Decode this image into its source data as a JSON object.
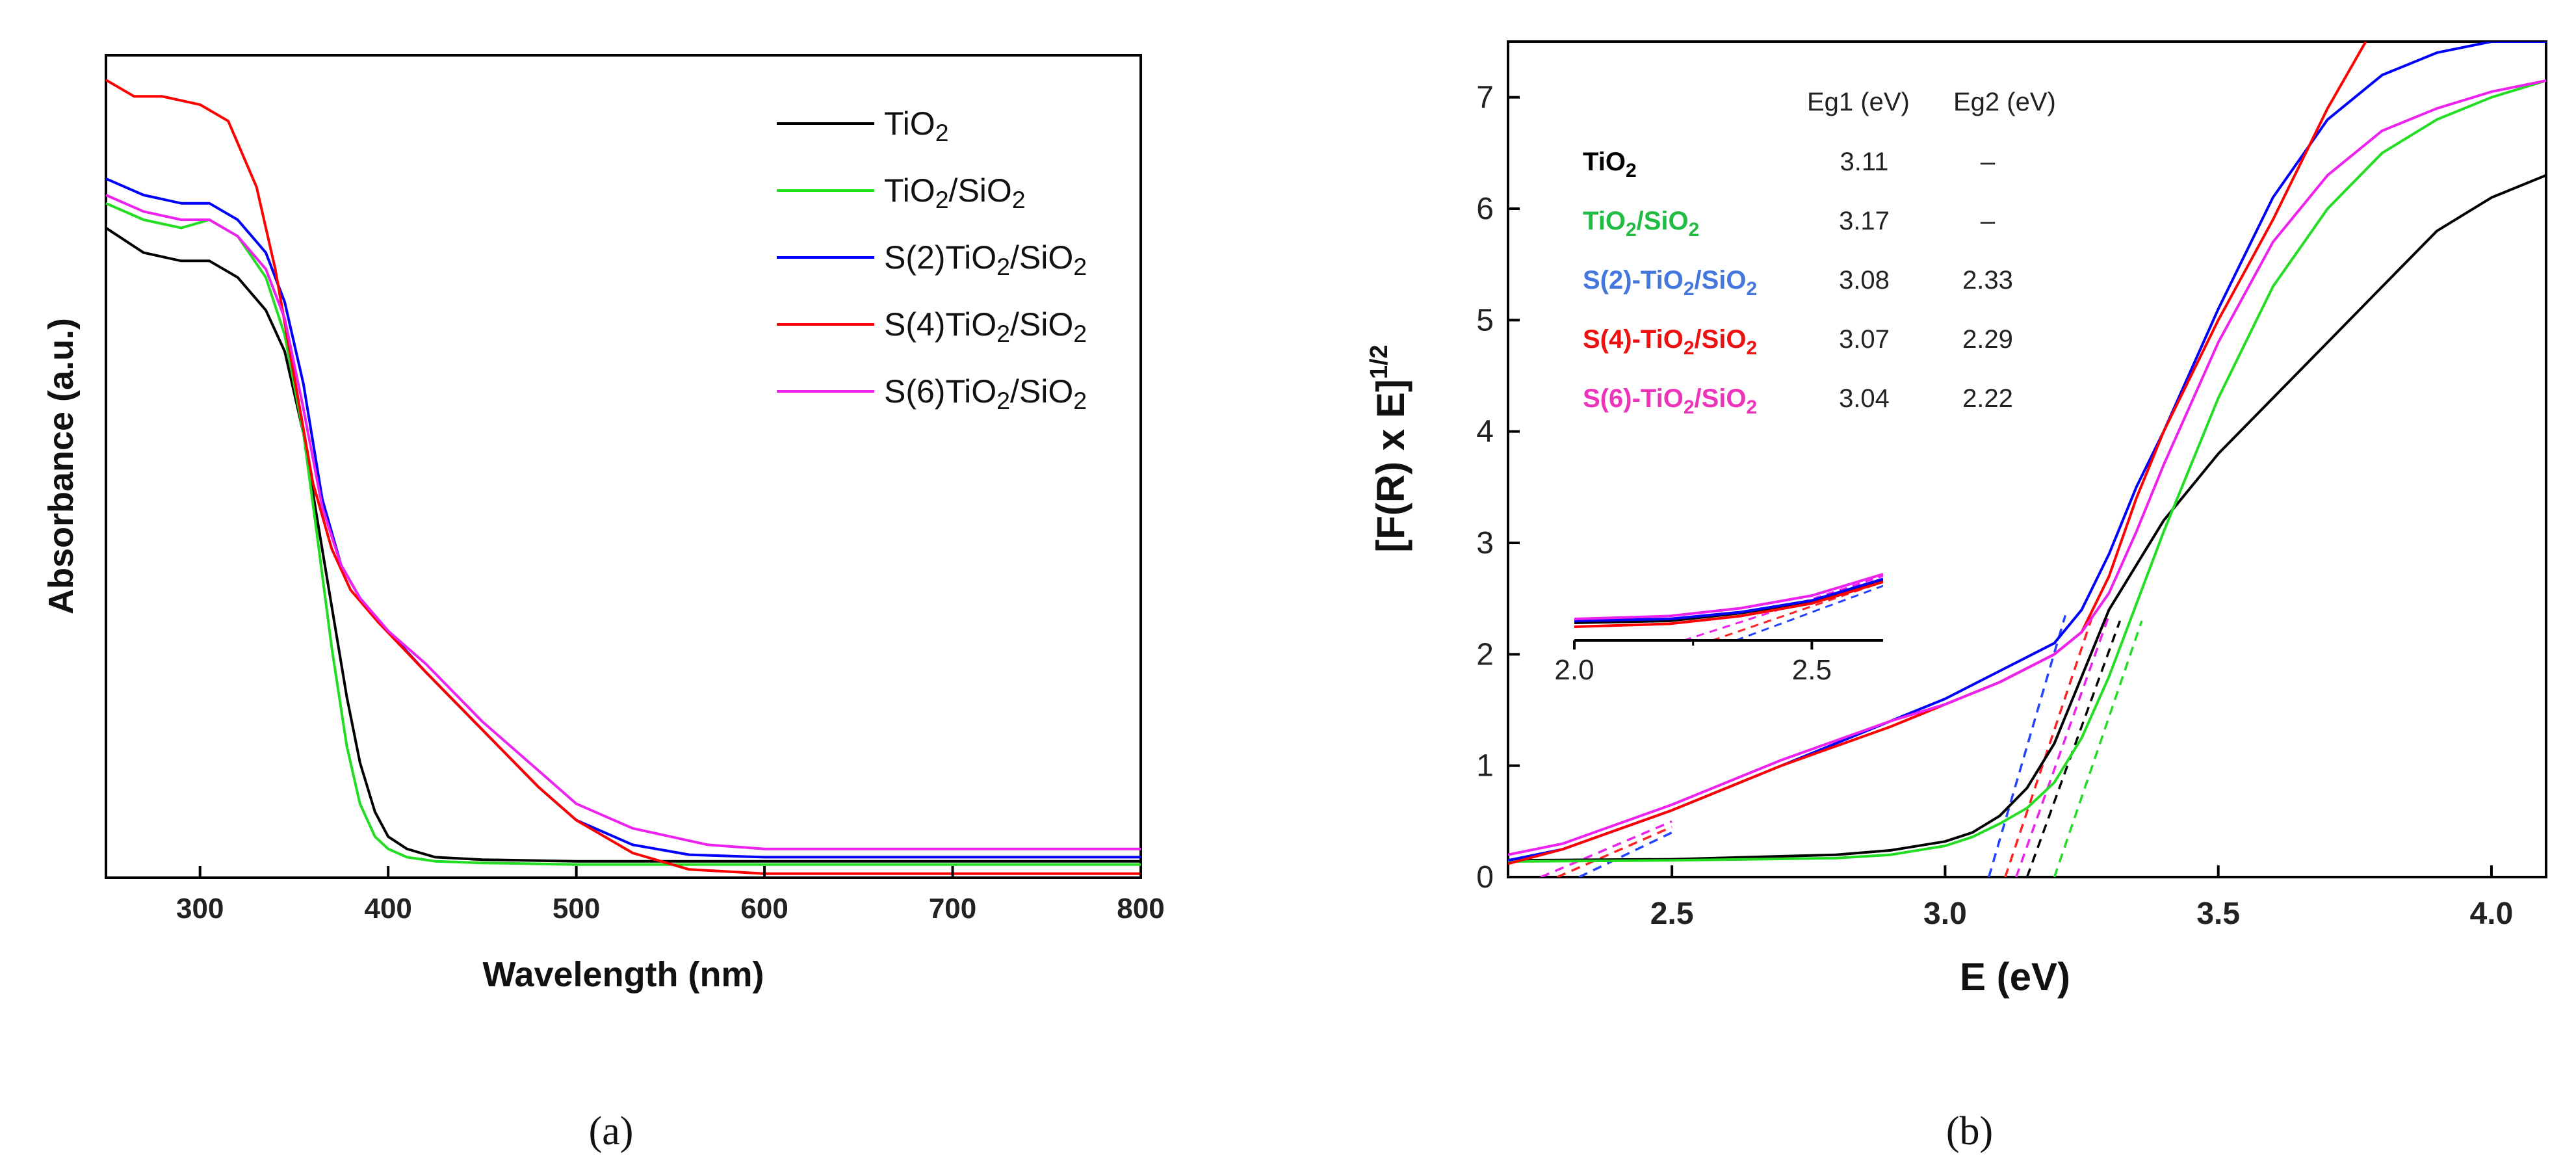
{
  "chart_data": [
    {
      "id": "a",
      "type": "line",
      "caption": "(a)",
      "xlabel": "Wavelength (nm)",
      "ylabel": "Absorbance (a.u.)",
      "xlim": [
        250,
        800
      ],
      "ylim": [
        0,
        1
      ],
      "xticks": [
        300,
        400,
        500,
        600,
        700,
        800
      ],
      "legend_position": "top-right",
      "series": [
        {
          "name": "TiO2",
          "label": {
            "pre": "TiO",
            "sub": "2",
            "mid": "",
            "sub2": ""
          },
          "color": "#000000",
          "x": [
            250,
            270,
            290,
            305,
            320,
            335,
            345,
            355,
            362,
            370,
            378,
            385,
            393,
            400,
            410,
            425,
            450,
            500,
            600,
            700,
            800
          ],
          "y": [
            0.79,
            0.76,
            0.75,
            0.75,
            0.73,
            0.69,
            0.64,
            0.54,
            0.44,
            0.33,
            0.22,
            0.14,
            0.08,
            0.05,
            0.035,
            0.025,
            0.022,
            0.02,
            0.02,
            0.02,
            0.02
          ]
        },
        {
          "name": "TiO2/SiO2",
          "label": {
            "pre": "TiO",
            "sub": "2",
            "mid": "/SiO",
            "sub2": "2"
          },
          "color": "#22dd22",
          "x": [
            250,
            270,
            290,
            305,
            320,
            335,
            345,
            355,
            362,
            370,
            378,
            385,
            393,
            400,
            410,
            425,
            450,
            500,
            600,
            700,
            800
          ],
          "y": [
            0.82,
            0.8,
            0.79,
            0.8,
            0.78,
            0.73,
            0.66,
            0.54,
            0.42,
            0.28,
            0.16,
            0.09,
            0.05,
            0.035,
            0.025,
            0.02,
            0.018,
            0.016,
            0.016,
            0.016,
            0.016
          ]
        },
        {
          "name": "S(2)TiO2/SiO2",
          "label": {
            "pre": "S(2)TiO",
            "sub": "2",
            "mid": "/SiO",
            "sub2": "2"
          },
          "color": "#0000ff",
          "x": [
            250,
            270,
            290,
            305,
            320,
            335,
            345,
            355,
            365,
            375,
            385,
            400,
            420,
            450,
            480,
            500,
            530,
            560,
            600,
            700,
            800
          ],
          "y": [
            0.85,
            0.83,
            0.82,
            0.82,
            0.8,
            0.76,
            0.7,
            0.6,
            0.46,
            0.38,
            0.34,
            0.3,
            0.25,
            0.18,
            0.11,
            0.07,
            0.04,
            0.028,
            0.025,
            0.025,
            0.025
          ]
        },
        {
          "name": "S(4)TiO2/SiO2",
          "label": {
            "pre": "S(4)TiO",
            "sub": "2",
            "mid": "/SiO",
            "sub2": "2"
          },
          "color": "#ff0000",
          "x": [
            250,
            265,
            280,
            300,
            315,
            330,
            340,
            350,
            360,
            370,
            380,
            395,
            420,
            450,
            480,
            500,
            530,
            560,
            600,
            700,
            800
          ],
          "y": [
            0.97,
            0.95,
            0.95,
            0.94,
            0.92,
            0.84,
            0.74,
            0.61,
            0.48,
            0.4,
            0.35,
            0.31,
            0.25,
            0.18,
            0.11,
            0.07,
            0.03,
            0.01,
            0.005,
            0.005,
            0.005
          ]
        },
        {
          "name": "S(6)TiO2/SiO2",
          "label": {
            "pre": "S(6)TiO",
            "sub": "2",
            "mid": "/SiO",
            "sub2": "2"
          },
          "color": "#ee22ee",
          "x": [
            250,
            270,
            290,
            305,
            320,
            335,
            345,
            355,
            365,
            375,
            385,
            400,
            420,
            450,
            480,
            500,
            530,
            570,
            600,
            700,
            800
          ],
          "y": [
            0.83,
            0.81,
            0.8,
            0.8,
            0.78,
            0.74,
            0.68,
            0.57,
            0.45,
            0.38,
            0.34,
            0.3,
            0.26,
            0.19,
            0.13,
            0.09,
            0.06,
            0.04,
            0.035,
            0.035,
            0.035
          ]
        }
      ]
    },
    {
      "id": "b",
      "type": "line",
      "caption": "(b)",
      "xlabel": "E (eV)",
      "ylabel": "[F(R) x E]",
      "ylabel_sup": "1/2",
      "xlim": [
        2.2,
        4.1
      ],
      "ylim": [
        0,
        7.5
      ],
      "xticks": [
        "2.5",
        "3.0",
        "3.5",
        "4.0"
      ],
      "yticks": [
        "0",
        "1",
        "2",
        "3",
        "4",
        "5",
        "6",
        "7"
      ],
      "series": [
        {
          "name": "TiO2",
          "color": "#000000",
          "x": [
            2.2,
            2.5,
            2.8,
            2.9,
            3.0,
            3.05,
            3.1,
            3.15,
            3.2,
            3.25,
            3.3,
            3.4,
            3.5,
            3.6,
            3.7,
            3.8,
            3.9,
            4.0,
            4.1
          ],
          "y": [
            0.15,
            0.16,
            0.2,
            0.24,
            0.32,
            0.4,
            0.55,
            0.8,
            1.2,
            1.8,
            2.4,
            3.2,
            3.8,
            4.3,
            4.8,
            5.3,
            5.8,
            6.1,
            6.3
          ]
        },
        {
          "name": "TiO2/SiO2",
          "color": "#22dd22",
          "x": [
            2.2,
            2.5,
            2.8,
            2.9,
            3.0,
            3.05,
            3.1,
            3.15,
            3.2,
            3.25,
            3.3,
            3.35,
            3.4,
            3.5,
            3.6,
            3.7,
            3.8,
            3.9,
            4.0,
            4.1
          ],
          "y": [
            0.14,
            0.15,
            0.17,
            0.2,
            0.28,
            0.36,
            0.48,
            0.62,
            0.85,
            1.25,
            1.8,
            2.45,
            3.1,
            4.3,
            5.3,
            6.0,
            6.5,
            6.8,
            7.0,
            7.15
          ]
        },
        {
          "name": "S(2)-TiO2/SiO2",
          "color": "#0000ff",
          "x": [
            2.2,
            2.3,
            2.5,
            2.7,
            2.9,
            3.0,
            3.1,
            3.2,
            3.25,
            3.3,
            3.35,
            3.4,
            3.5,
            3.6,
            3.7,
            3.8,
            3.9,
            4.0,
            4.1
          ],
          "y": [
            0.15,
            0.25,
            0.6,
            1.0,
            1.4,
            1.6,
            1.85,
            2.1,
            2.4,
            2.9,
            3.5,
            4.0,
            5.1,
            6.1,
            6.8,
            7.2,
            7.4,
            7.5,
            7.5
          ]
        },
        {
          "name": "S(4)-TiO2/SiO2",
          "color": "#ff0000",
          "x": [
            2.2,
            2.3,
            2.5,
            2.7,
            2.9,
            3.0,
            3.1,
            3.2,
            3.25,
            3.3,
            3.35,
            3.4,
            3.5,
            3.6,
            3.7,
            3.77
          ],
          "y": [
            0.12,
            0.25,
            0.6,
            1.0,
            1.35,
            1.55,
            1.75,
            2.0,
            2.2,
            2.7,
            3.4,
            4.0,
            5.0,
            5.9,
            6.9,
            7.5
          ]
        },
        {
          "name": "S(6)-TiO2/SiO2",
          "color": "#ee22ee",
          "x": [
            2.2,
            2.3,
            2.5,
            2.7,
            2.9,
            3.0,
            3.1,
            3.2,
            3.25,
            3.3,
            3.35,
            3.4,
            3.5,
            3.6,
            3.7,
            3.8,
            3.9,
            4.0,
            4.1
          ],
          "y": [
            0.2,
            0.3,
            0.65,
            1.05,
            1.4,
            1.55,
            1.75,
            2.0,
            2.2,
            2.55,
            3.1,
            3.7,
            4.8,
            5.7,
            6.3,
            6.7,
            6.9,
            7.05,
            7.15
          ]
        }
      ],
      "tangents": [
        {
          "name": "TiO2",
          "color": "#000000",
          "x1": 3.15,
          "y1": 0.0,
          "x2": 3.32,
          "y2": 2.3
        },
        {
          "name": "TiO2/SiO2",
          "color": "#22dd22",
          "x1": 3.2,
          "y1": 0.0,
          "x2": 3.36,
          "y2": 2.3
        },
        {
          "name": "S(2)-TiO2/SiO2",
          "color": "#2244ff",
          "x1": 3.08,
          "y1": 0.0,
          "x2": 3.22,
          "y2": 2.35
        },
        {
          "name": "S(4)-TiO2/SiO2",
          "color": "#ff2222",
          "x1": 3.11,
          "y1": 0.0,
          "x2": 3.27,
          "y2": 2.35
        },
        {
          "name": "S(6)-TiO2/SiO2",
          "color": "#ee22ee",
          "x1": 3.13,
          "y1": 0.0,
          "x2": 3.3,
          "y2": 2.35
        }
      ],
      "low_tangents": [
        {
          "color": "#ee22ee",
          "x1": 2.26,
          "y1": 0.0,
          "x2": 2.5,
          "y2": 0.5
        },
        {
          "color": "#ff2222",
          "x1": 2.29,
          "y1": 0.0,
          "x2": 2.5,
          "y2": 0.45
        },
        {
          "color": "#2244ff",
          "x1": 2.33,
          "y1": 0.0,
          "x2": 2.5,
          "y2": 0.4
        }
      ],
      "inset": {
        "xlim": [
          2.0,
          2.65
        ],
        "ylim": [
          0,
          1
        ],
        "xticks": [
          "2.0",
          "2.5"
        ],
        "series": [
          {
            "color": "#000000",
            "x": [
              2.0,
              2.2,
              2.35,
              2.5,
              2.65
            ],
            "y": [
              0.18,
              0.2,
              0.28,
              0.4,
              0.62
            ]
          },
          {
            "color": "#ff0000",
            "x": [
              2.0,
              2.2,
              2.35,
              2.5,
              2.65
            ],
            "y": [
              0.14,
              0.17,
              0.25,
              0.38,
              0.6
            ]
          },
          {
            "color": "#0000ff",
            "x": [
              2.0,
              2.2,
              2.35,
              2.5,
              2.65
            ],
            "y": [
              0.2,
              0.22,
              0.29,
              0.41,
              0.63
            ]
          },
          {
            "color": "#ee22ee",
            "x": [
              2.0,
              2.2,
              2.35,
              2.5,
              2.65
            ],
            "y": [
              0.22,
              0.25,
              0.33,
              0.46,
              0.68
            ]
          }
        ],
        "tangents": [
          {
            "color": "#ee22ee",
            "x1": 2.23,
            "y1": 0.0,
            "x2": 2.65,
            "y2": 0.66
          },
          {
            "color": "#ff2222",
            "x1": 2.29,
            "y1": 0.0,
            "x2": 2.65,
            "y2": 0.6
          },
          {
            "color": "#2244ff",
            "x1": 2.34,
            "y1": 0.0,
            "x2": 2.65,
            "y2": 0.56
          }
        ]
      },
      "table": {
        "headers": [
          "Eg1 (eV)",
          "Eg2 (eV)"
        ],
        "rows": [
          {
            "pre": "TiO",
            "sub": "2",
            "mid": "",
            "sub2": "",
            "color": "#000000",
            "eg1": "3.11",
            "eg2": "–"
          },
          {
            "pre": "TiO",
            "sub": "2",
            "mid": "/SiO",
            "sub2": "2",
            "color": "#22bb44",
            "eg1": "3.17",
            "eg2": "–"
          },
          {
            "pre": "S(2)-TiO",
            "sub": "2",
            "mid": "/SiO",
            "sub2": "2",
            "color": "#4477dd",
            "eg1": "3.08",
            "eg2": "2.33"
          },
          {
            "pre": "S(4)-TiO",
            "sub": "2",
            "mid": "/SiO",
            "sub2": "2",
            "color": "#ee1111",
            "eg1": "3.07",
            "eg2": "2.29"
          },
          {
            "pre": "S(6)-TiO",
            "sub": "2",
            "mid": "/SiO",
            "sub2": "2",
            "color": "#ee33bb",
            "eg1": "3.04",
            "eg2": "2.22"
          }
        ]
      }
    }
  ]
}
